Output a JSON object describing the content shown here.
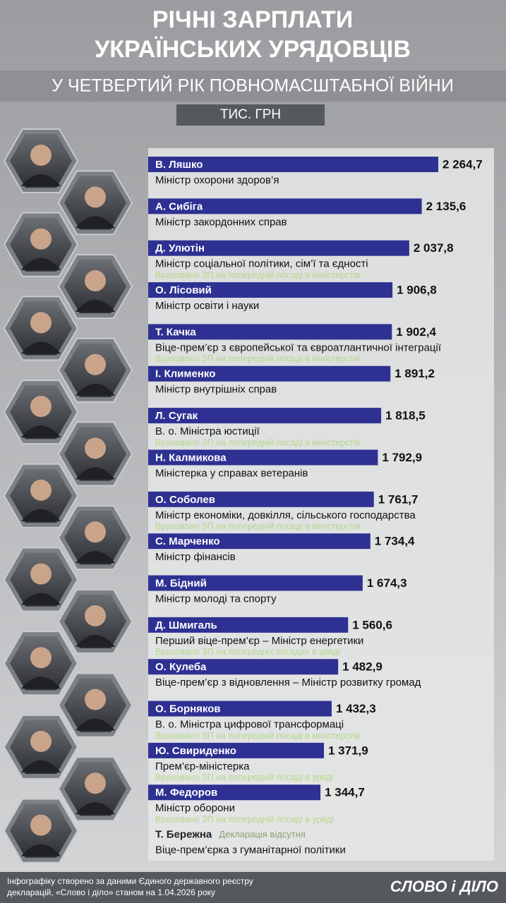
{
  "chart_data": {
    "type": "bar",
    "orientation": "horizontal",
    "title_lines": [
      "РІЧНІ ЗАРПЛАТИ",
      "УКРАЇНСЬКИХ УРЯДОВЦІВ"
    ],
    "subtitle": "У ЧЕТВЕРТИЙ РІК ПОВНОМАСШТАБНОЇ ВІЙНИ",
    "unit": "ТИС. ГРН",
    "color": "#2e3192",
    "categories": [
      "В. Ляшко",
      "А. Сибіга",
      "Д. Улютін",
      "О. Лісовий",
      "Т. Качка",
      "І. Клименко",
      "Л. Сугак",
      "Н. Калмикова",
      "О. Соболев",
      "С. Марченко",
      "М. Бідний",
      "Д. Шмигаль",
      "О. Кулеба",
      "О. Борняков",
      "Ю. Свириденко",
      "М. Федоров",
      "Т. Бережна"
    ],
    "roles": [
      "Міністр охорони здоров’я",
      "Міністр закордонних справ",
      "Міністр соціальної політики, сім’ї та єдності",
      "Міністр освіти і науки",
      "Віце-прем’єр з європейської та євроатлантичної інтеграції",
      "Міністр внутрішніх справ",
      "В. о. Міністра юстиції",
      "Міністерка у справах ветеранів",
      "Міністр економіки, довкілля, сільського господарства",
      "Міністр фінансів",
      "Міністр молоді та спорту",
      "Перший віце-прем’єр – Міністр енергетики",
      "Віце-прем’єр з відновлення – Міністр розвитку громад",
      "В. о. Міністра цифрової трансформаці",
      "Прем’єр-міністерка",
      "Міністр оборони",
      "Віце-прем’єрка з гуманітарної політики"
    ],
    "notes": [
      null,
      null,
      "Враховано ЗП на попередній посаді в міністерстві",
      null,
      "Враховано ЗП на попередній посаді в міністерстві",
      null,
      "Враховано ЗП на попередній посаді в міністерстві",
      null,
      "Враховано ЗП на попередній посаді в міністерстві",
      null,
      null,
      "Враховано ЗП на попередніх посадах в уряді",
      null,
      "Враховано ЗП на попередній посаді в міністерстві",
      "Враховано ЗП на попередній посаді в уряді",
      "Враховано ЗП на попередній посаді в уряді",
      null
    ],
    "values": [
      2264.7,
      2135.6,
      2037.8,
      1906.8,
      1902.4,
      1891.2,
      1818.5,
      1792.9,
      1761.7,
      1734.4,
      1674.3,
      1560.6,
      1482.9,
      1432.3,
      1371.9,
      1344.7,
      null
    ],
    "value_labels": [
      "2 264,7",
      "2 135,6",
      "2 037,8",
      "1 906,8",
      "1 902,4",
      "1 891,2",
      "1 818,5",
      "1 792,9",
      "1 761,7",
      "1 734,4",
      "1 674,3",
      "1 560,6",
      "1 482,9",
      "1 432,3",
      "1 371,9",
      "1 344,7",
      null
    ],
    "missing_note": "Декларація відсутня"
  },
  "footer_lines": [
    "Інфографіку створено за даними Єдиного державного реєстру",
    "декларацій, «Слово і діло» станом на 1.04.2026 року"
  ],
  "logo": "СЛОВО і ДІЛО"
}
